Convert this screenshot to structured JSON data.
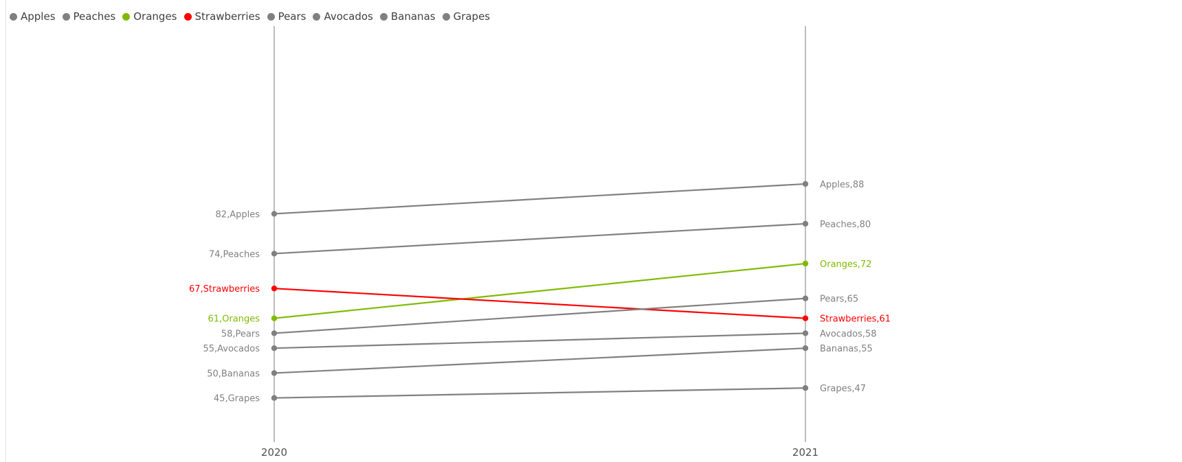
{
  "legend": [
    {
      "name": "Apples",
      "color": "#808080"
    },
    {
      "name": "Peaches",
      "color": "#808080"
    },
    {
      "name": "Oranges",
      "color": "#7FBA00"
    },
    {
      "name": "Strawberries",
      "color": "#FF0000"
    },
    {
      "name": "Pears",
      "color": "#808080"
    },
    {
      "name": "Avocados",
      "color": "#808080"
    },
    {
      "name": "Bananas",
      "color": "#808080"
    },
    {
      "name": "Grapes",
      "color": "#808080"
    }
  ],
  "chart_data": {
    "type": "line",
    "subtype": "slope",
    "x": [
      "2020",
      "2021"
    ],
    "title": "",
    "xlabel": "",
    "ylabel": "",
    "ylim": [
      41,
      90
    ],
    "grid": false,
    "legend_position": "top-left",
    "series": [
      {
        "name": "Apples",
        "values": [
          82,
          88
        ],
        "color": "#808080",
        "labels": [
          "82,Apples",
          "Apples,88"
        ]
      },
      {
        "name": "Peaches",
        "values": [
          74,
          80
        ],
        "color": "#808080",
        "labels": [
          "74,Peaches",
          "Peaches,80"
        ]
      },
      {
        "name": "Oranges",
        "values": [
          61,
          72
        ],
        "color": "#7FBA00",
        "labels": [
          "61,Oranges",
          "Oranges,72"
        ]
      },
      {
        "name": "Strawberries",
        "values": [
          67,
          61
        ],
        "color": "#FF0000",
        "labels": [
          "67,Strawberries",
          "Strawberries,61"
        ]
      },
      {
        "name": "Pears",
        "values": [
          58,
          65
        ],
        "color": "#808080",
        "labels": [
          "58,Pears",
          "Pears,65"
        ]
      },
      {
        "name": "Avocados",
        "values": [
          55,
          58
        ],
        "color": "#808080",
        "labels": [
          "55,Avocados",
          "Avocados,58"
        ]
      },
      {
        "name": "Bananas",
        "values": [
          50,
          55
        ],
        "color": "#808080",
        "labels": [
          "50,Bananas",
          "Bananas,55"
        ]
      },
      {
        "name": "Grapes",
        "values": [
          45,
          47
        ],
        "color": "#808080",
        "labels": [
          "45,Grapes",
          "Grapes,47"
        ]
      }
    ]
  }
}
